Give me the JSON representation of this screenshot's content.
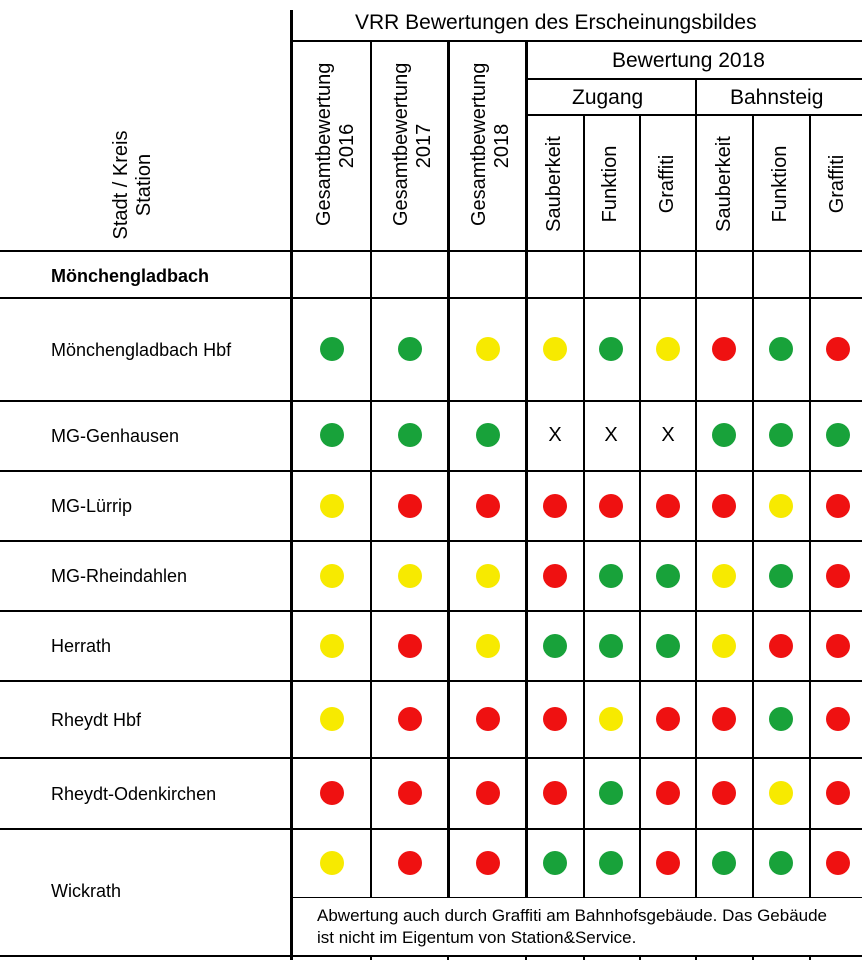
{
  "header": {
    "main_title": "VRR Bewertungen des Erscheinungsbildes",
    "left_header": [
      "Stadt / Kreis",
      "Station"
    ],
    "overall_cols": [
      [
        "Gesamtbewertung",
        "2016"
      ],
      [
        "Gesamtbewertung",
        "2017"
      ],
      [
        "Gesamtbewertung",
        "2018"
      ]
    ],
    "rating_group": "Bewertung 2018",
    "subgroups": [
      "Zugang",
      "Bahnsteig"
    ],
    "criteria": [
      "Sauberkeit",
      "Funktion",
      "Graffiti",
      "Sauberkeit",
      "Funktion",
      "Graffiti"
    ]
  },
  "region": "Mönchengladbach",
  "legend_colors": {
    "green": "#18a23a",
    "yellow": "#f7ea00",
    "red": "#ef1111"
  },
  "rows": [
    {
      "station": "Mönchengladbach Hbf",
      "ratings": [
        "green",
        "green",
        "yellow",
        "yellow",
        "green",
        "yellow",
        "red",
        "green",
        "red"
      ]
    },
    {
      "station": "MG-Genhausen",
      "ratings": [
        "green",
        "green",
        "green",
        "X",
        "X",
        "X",
        "green",
        "green",
        "green"
      ]
    },
    {
      "station": "MG-Lürrip",
      "ratings": [
        "yellow",
        "red",
        "red",
        "red",
        "red",
        "red",
        "red",
        "yellow",
        "red"
      ]
    },
    {
      "station": "MG-Rheindahlen",
      "ratings": [
        "yellow",
        "yellow",
        "yellow",
        "red",
        "green",
        "green",
        "yellow",
        "green",
        "red"
      ]
    },
    {
      "station": "Herrath",
      "ratings": [
        "yellow",
        "red",
        "yellow",
        "green",
        "green",
        "green",
        "yellow",
        "red",
        "red"
      ]
    },
    {
      "station": "Rheydt Hbf",
      "ratings": [
        "yellow",
        "red",
        "red",
        "red",
        "yellow",
        "red",
        "red",
        "green",
        "red"
      ]
    },
    {
      "station": "Rheydt-Odenkirchen",
      "ratings": [
        "red",
        "red",
        "red",
        "red",
        "green",
        "red",
        "red",
        "yellow",
        "red"
      ]
    },
    {
      "station": "Wickrath",
      "ratings": [
        "yellow",
        "red",
        "red",
        "green",
        "green",
        "red",
        "green",
        "green",
        "red"
      ]
    }
  ],
  "wickrath_note": "Abwertung auch durch Graffiti am Bahnhofsgebäude. Das Gebäude ist nicht im Eigentum von Station&Service."
}
